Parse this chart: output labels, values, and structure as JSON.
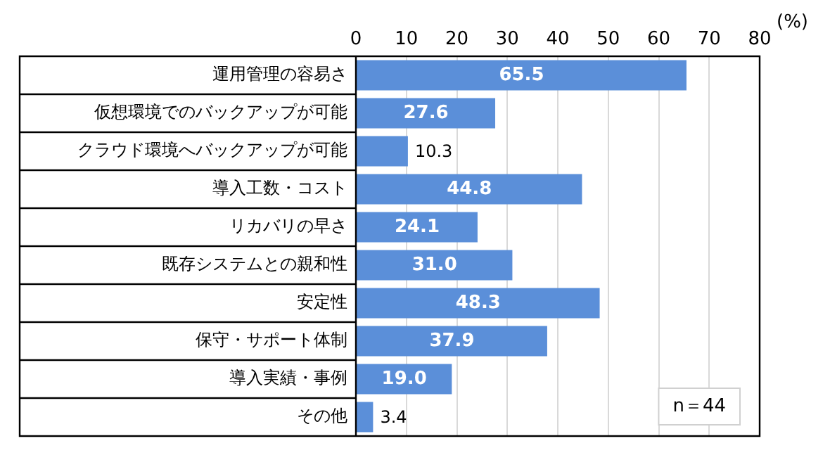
{
  "chart_data": {
    "type": "bar",
    "orientation": "horizontal",
    "xlabel": "(%)",
    "categories": [
      "運用管理の容易さ",
      "仮想環境でのバックアップが可能",
      "クラウド環境へバックアップが可能",
      "導入工数・コスト",
      "リカバリの早さ",
      "既存システムとの親和性",
      "安定性",
      "保守・サポート体制",
      "導入実績・事例",
      "その他"
    ],
    "values": [
      65.5,
      27.6,
      10.3,
      44.8,
      24.1,
      31.0,
      48.3,
      37.9,
      19.0,
      3.4
    ],
    "value_labels": [
      "65.5",
      "27.6",
      "10.3",
      "44.8",
      "24.1",
      "31.0",
      "48.3",
      "37.9",
      "19.0",
      "3.4"
    ],
    "color": "#5b8fd9",
    "xlim": [
      0,
      80
    ],
    "xticks": [
      0,
      10,
      20,
      30,
      40,
      50,
      60,
      70,
      80
    ],
    "grid": "x",
    "annotations": [
      "n＝44"
    ]
  }
}
